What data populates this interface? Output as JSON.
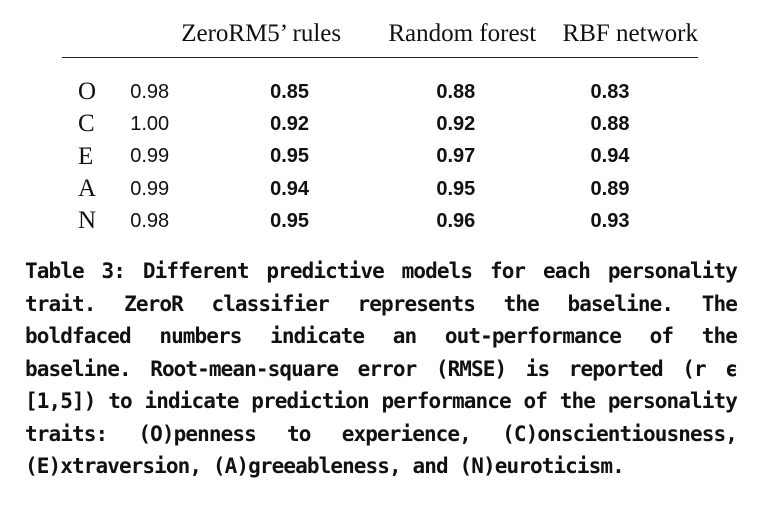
{
  "table": {
    "headers": [
      "",
      "ZeroR",
      "M5’ rules",
      "Random forest",
      "RBF network"
    ],
    "rows": [
      {
        "trait": "O",
        "zeror": "0.98",
        "m5": "0.85",
        "rf": "0.88",
        "rbf": "0.83"
      },
      {
        "trait": "C",
        "zeror": "1.00",
        "m5": "0.92",
        "rf": "0.92",
        "rbf": "0.88"
      },
      {
        "trait": "E",
        "zeror": "0.99",
        "m5": "0.95",
        "rf": "0.97",
        "rbf": "0.94"
      },
      {
        "trait": "A",
        "zeror": "0.99",
        "m5": "0.94",
        "rf": "0.95",
        "rbf": "0.89"
      },
      {
        "trait": "N",
        "zeror": "0.98",
        "m5": "0.95",
        "rf": "0.96",
        "rbf": "0.93"
      }
    ]
  },
  "caption": "Table 3: Different predictive models for each personality trait. ZeroR classifier represents the baseline. The boldfaced numbers indicate an out-performance of the baseline. Root-mean-square error (RMSE) is reported (r ϵ [1,5]) to indicate prediction performance of the personality traits: (O)penness to experience, (C)onscientiousness, (E)xtraversion, (A)greeableness, and (N)euroticism."
}
